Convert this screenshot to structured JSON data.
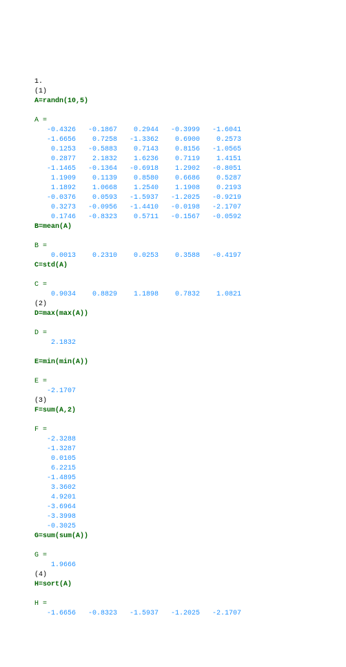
{
  "colors": {
    "command": "#006400",
    "variable": "#006400",
    "number": "#1e90ff",
    "text": "#000000",
    "background": "#ffffff"
  },
  "font": {
    "family": "Courier New",
    "size_pt": 8
  },
  "lines": [
    {
      "cls": "black",
      "text": "1."
    },
    {
      "cls": "black",
      "text": "(1)"
    },
    {
      "cls": "cmd",
      "text": "A=randn(10,5)"
    },
    {
      "cls": "black",
      "text": ""
    },
    {
      "cls": "var",
      "text": "A ="
    },
    {
      "cls": "num",
      "text": "   -0.4326   -0.1867    0.2944   -0.3999   -1.6041"
    },
    {
      "cls": "num",
      "text": "   -1.6656    0.7258   -1.3362    0.6900    0.2573"
    },
    {
      "cls": "num",
      "text": "    0.1253   -0.5883    0.7143    0.8156   -1.0565"
    },
    {
      "cls": "num",
      "text": "    0.2877    2.1832    1.6236    0.7119    1.4151"
    },
    {
      "cls": "num",
      "text": "   -1.1465   -0.1364   -0.6918    1.2902   -0.8051"
    },
    {
      "cls": "num",
      "text": "    1.1909    0.1139    0.8580    0.6686    0.5287"
    },
    {
      "cls": "num",
      "text": "    1.1892    1.0668    1.2540    1.1908    0.2193"
    },
    {
      "cls": "num",
      "text": "   -0.0376    0.0593   -1.5937   -1.2025   -0.9219"
    },
    {
      "cls": "num",
      "text": "    0.3273   -0.0956   -1.4410   -0.0198   -2.1707"
    },
    {
      "cls": "num",
      "text": "    0.1746   -0.8323    0.5711   -0.1567   -0.0592"
    },
    {
      "cls": "cmd",
      "text": "B=mean(A)"
    },
    {
      "cls": "black",
      "text": ""
    },
    {
      "cls": "var",
      "text": "B ="
    },
    {
      "cls": "num",
      "text": "    0.0013    0.2310    0.0253    0.3588   -0.4197"
    },
    {
      "cls": "cmd",
      "text": "C=std(A)"
    },
    {
      "cls": "black",
      "text": ""
    },
    {
      "cls": "var",
      "text": "C ="
    },
    {
      "cls": "num",
      "text": "    0.9034    0.8829    1.1898    0.7832    1.0821"
    },
    {
      "cls": "black",
      "text": "(2)"
    },
    {
      "cls": "cmd",
      "text": "D=max(max(A))"
    },
    {
      "cls": "black",
      "text": ""
    },
    {
      "cls": "var",
      "text": "D ="
    },
    {
      "cls": "num",
      "text": "    2.1832"
    },
    {
      "cls": "black",
      "text": ""
    },
    {
      "cls": "cmd",
      "text": "E=min(min(A))"
    },
    {
      "cls": "black",
      "text": ""
    },
    {
      "cls": "var",
      "text": "E ="
    },
    {
      "cls": "num",
      "text": "   -2.1707"
    },
    {
      "cls": "black",
      "text": "(3)"
    },
    {
      "cls": "cmd",
      "text": "F=sum(A,2)"
    },
    {
      "cls": "black",
      "text": ""
    },
    {
      "cls": "var",
      "text": "F ="
    },
    {
      "cls": "num",
      "text": "   -2.3288"
    },
    {
      "cls": "num",
      "text": "   -1.3287"
    },
    {
      "cls": "num",
      "text": "    0.0105"
    },
    {
      "cls": "num",
      "text": "    6.2215"
    },
    {
      "cls": "num",
      "text": "   -1.4895"
    },
    {
      "cls": "num",
      "text": "    3.3602"
    },
    {
      "cls": "num",
      "text": "    4.9201"
    },
    {
      "cls": "num",
      "text": "   -3.6964"
    },
    {
      "cls": "num",
      "text": "   -3.3998"
    },
    {
      "cls": "num",
      "text": "   -0.3025"
    },
    {
      "cls": "cmd",
      "text": "G=sum(sum(A))"
    },
    {
      "cls": "black",
      "text": ""
    },
    {
      "cls": "var",
      "text": "G ="
    },
    {
      "cls": "num",
      "text": "    1.9666"
    },
    {
      "cls": "black",
      "text": "(4)"
    },
    {
      "cls": "cmd",
      "text": "H=sort(A)"
    },
    {
      "cls": "black",
      "text": ""
    },
    {
      "cls": "var",
      "text": "H ="
    },
    {
      "cls": "num",
      "text": "   -1.6656   -0.8323   -1.5937   -1.2025   -2.1707"
    }
  ]
}
